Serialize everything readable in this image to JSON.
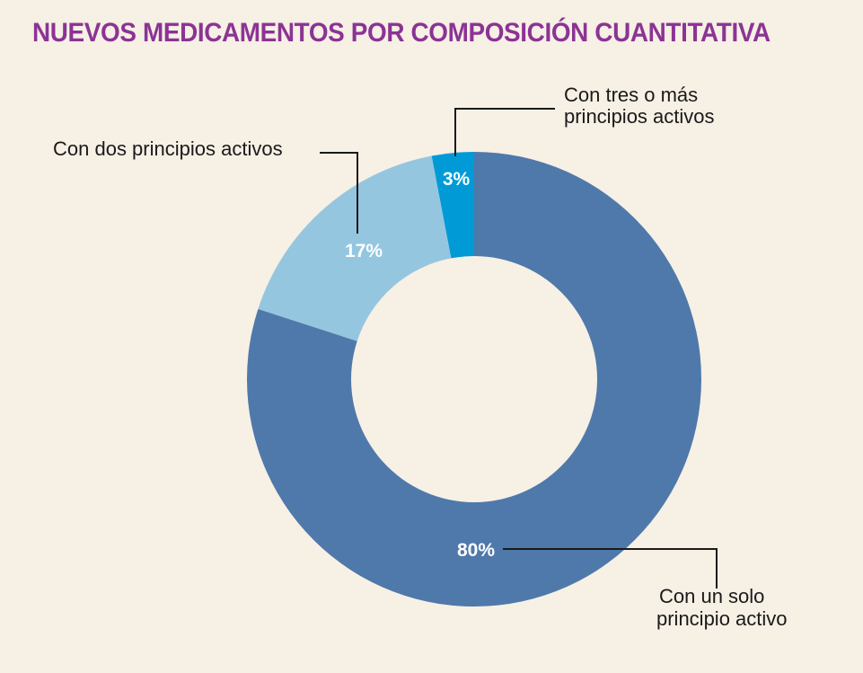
{
  "chart_data": {
    "type": "pie",
    "title": "NUEVOS MEDICAMENTOS POR COMPOSICIÓN CUANTITATIVA",
    "donut": true,
    "slices": [
      {
        "name": "Con tres o más principios activos",
        "value": 3,
        "display": "3%",
        "color": "#009bd7",
        "label_lines": [
          "Con tres o más",
          "principios activos"
        ]
      },
      {
        "name": "Con un solo principio activo",
        "value": 80,
        "display": "80%",
        "color": "#4f79aa",
        "label_lines": [
          "Con un solo",
          "principio activo"
        ]
      },
      {
        "name": "Con dos principios activos",
        "value": 17,
        "display": "17%",
        "color": "#95c6df",
        "label_lines": [
          "Con dos principios activos"
        ]
      }
    ]
  }
}
